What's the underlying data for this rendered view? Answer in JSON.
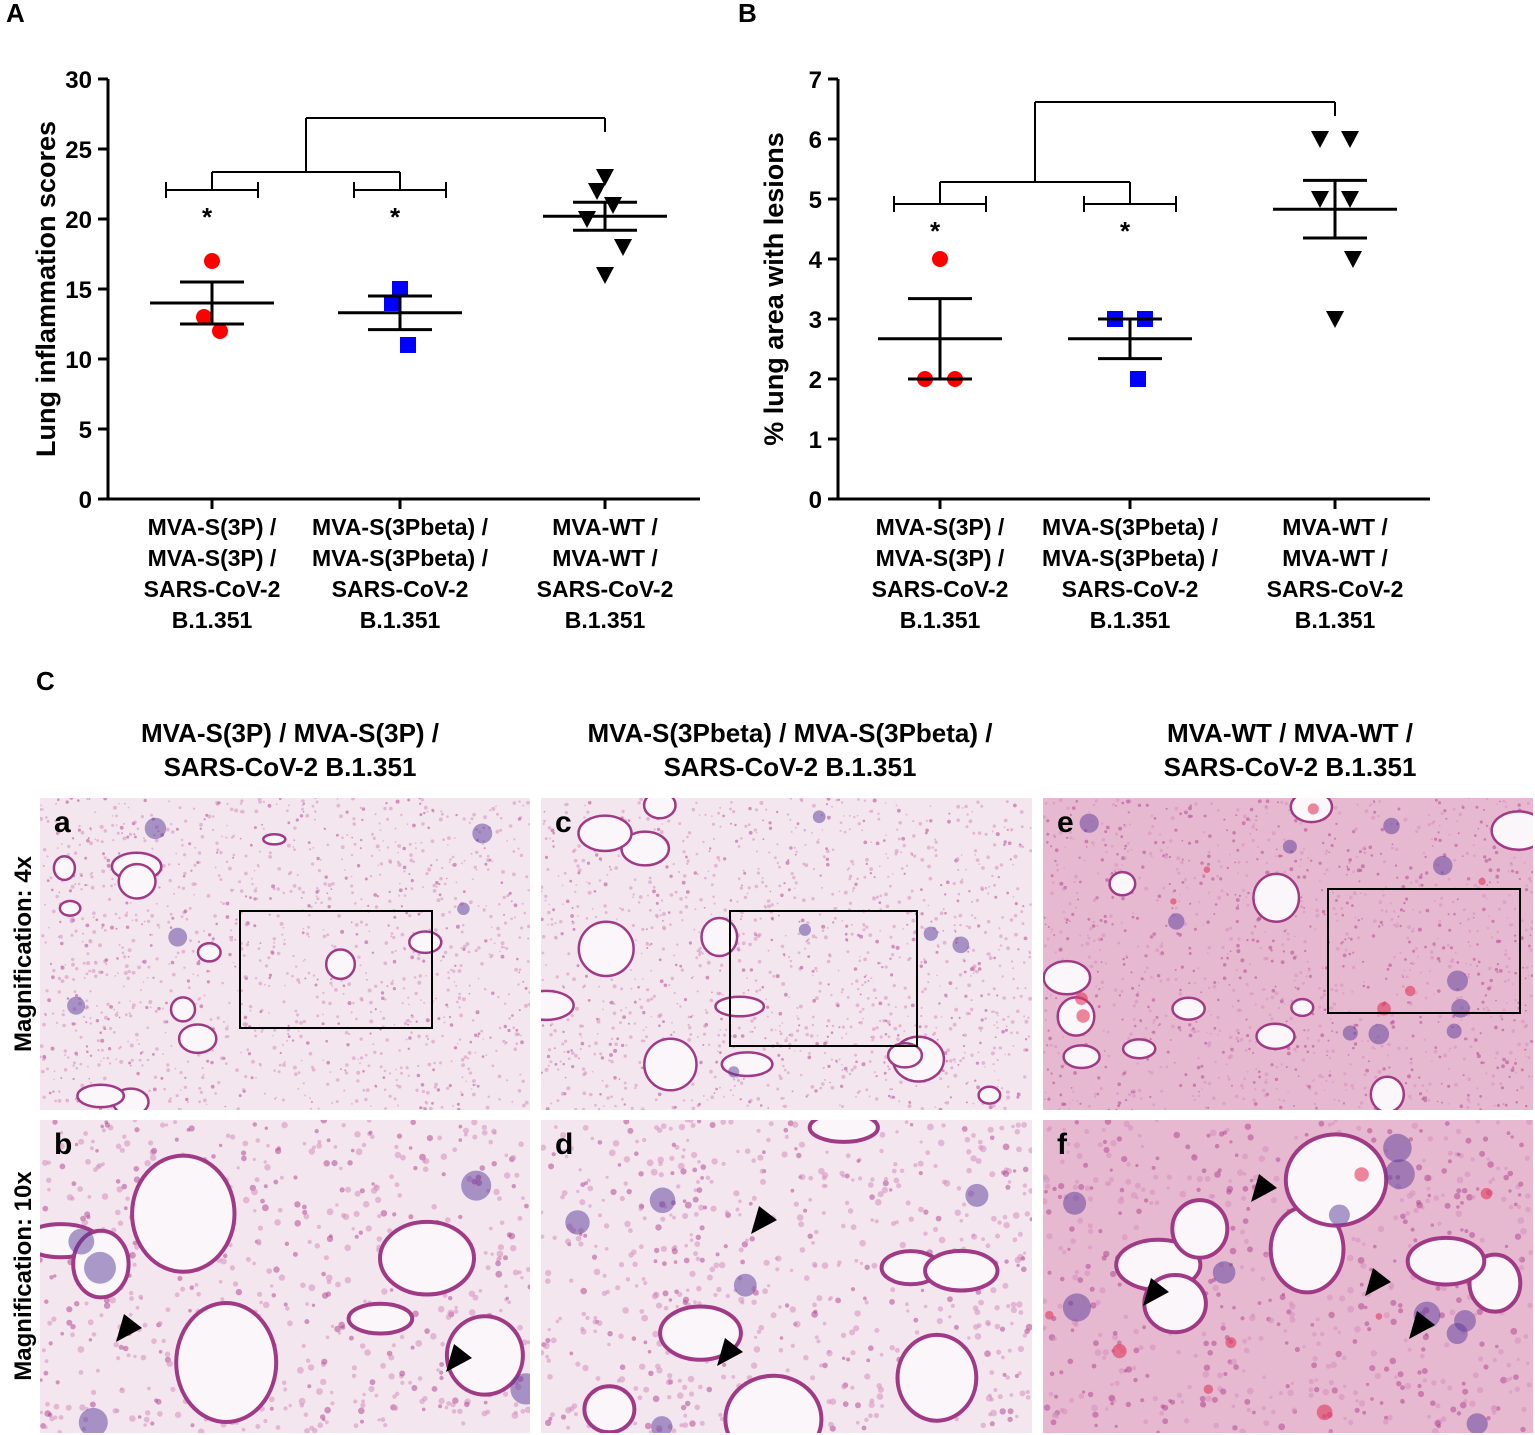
{
  "panels": {
    "A": "A",
    "B": "B",
    "C": "C"
  },
  "chart_data": [
    {
      "type": "scatter",
      "panel": "A",
      "ylabel": "Lung inflammation scores",
      "xlabel": "",
      "ylim": [
        0,
        30
      ],
      "yticks": [
        0,
        5,
        10,
        15,
        20,
        25,
        30
      ],
      "categories": [
        [
          "MVA-S(3P) /",
          "MVA-S(3P) /",
          "SARS-CoV-2",
          "B.1.351"
        ],
        [
          "MVA-S(3Pbeta) /",
          "MVA-S(3Pbeta) /",
          "SARS-CoV-2",
          "B.1.351"
        ],
        [
          "MVA-WT /",
          "MVA-WT /",
          "SARS-CoV-2",
          "B.1.351"
        ]
      ],
      "series": [
        {
          "marker": "circle",
          "color": "#ff0000",
          "points": [
            17,
            13,
            12
          ],
          "mean": 14.0,
          "sem": 1.5
        },
        {
          "marker": "square",
          "color": "#0000ff",
          "points": [
            15,
            14,
            11
          ],
          "mean": 13.3,
          "sem": 1.2
        },
        {
          "marker": "triangle-down",
          "color": "#000000",
          "points": [
            23,
            22,
            21,
            20,
            18,
            16
          ],
          "mean": 20.2,
          "sem": 1.0
        }
      ],
      "significance": [
        "*",
        "*"
      ]
    },
    {
      "type": "scatter",
      "panel": "B",
      "ylabel": "% lung area with lesions",
      "xlabel": "",
      "ylim": [
        0,
        7
      ],
      "yticks": [
        0,
        1,
        2,
        3,
        4,
        5,
        6,
        7
      ],
      "categories": [
        [
          "MVA-S(3P) /",
          "MVA-S(3P) /",
          "SARS-CoV-2",
          "B.1.351"
        ],
        [
          "MVA-S(3Pbeta) /",
          "MVA-S(3Pbeta) /",
          "SARS-CoV-2",
          "B.1.351"
        ],
        [
          "MVA-WT /",
          "MVA-WT /",
          "SARS-CoV-2",
          "B.1.351"
        ]
      ],
      "series": [
        {
          "marker": "circle",
          "color": "#ff0000",
          "points": [
            4,
            2,
            2
          ],
          "mean": 2.67,
          "sem": 0.67
        },
        {
          "marker": "square",
          "color": "#0000ff",
          "points": [
            3,
            3,
            2
          ],
          "mean": 2.67,
          "sem": 0.33
        },
        {
          "marker": "triangle-down",
          "color": "#000000",
          "points": [
            6,
            6,
            5,
            5,
            4,
            3
          ],
          "mean": 4.83,
          "sem": 0.48
        }
      ],
      "significance": [
        "*",
        "*"
      ]
    }
  ],
  "panel_c": {
    "headers": [
      [
        "MVA-S(3P) / MVA-S(3P) /",
        "SARS-CoV-2 B.1.351"
      ],
      [
        "MVA-S(3Pbeta) / MVA-S(3Pbeta) /",
        "SARS-CoV-2 B.1.351"
      ],
      [
        "MVA-WT / MVA-WT /",
        "SARS-CoV-2 B.1.351"
      ]
    ],
    "rows": [
      "Magnification: 4x",
      "Magnification: 10x"
    ],
    "images": [
      {
        "letter": "a",
        "tone": "light"
      },
      {
        "letter": "c",
        "tone": "light"
      },
      {
        "letter": "e",
        "tone": "dense"
      },
      {
        "letter": "b",
        "tone": "light"
      },
      {
        "letter": "d",
        "tone": "light"
      },
      {
        "letter": "f",
        "tone": "dense"
      }
    ]
  }
}
